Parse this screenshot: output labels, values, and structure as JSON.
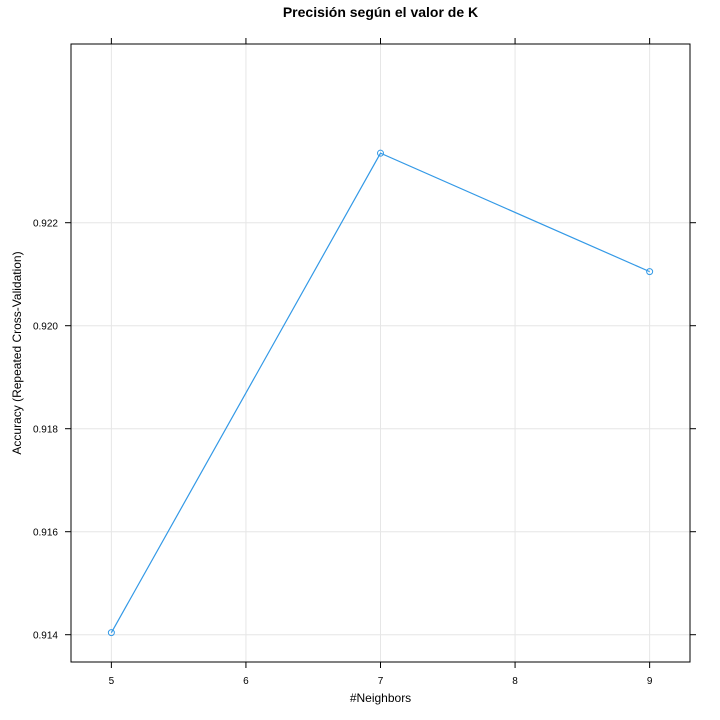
{
  "chart_data": {
    "type": "line",
    "title": "Precisión según el valor de K",
    "xlabel": "#Neighbors",
    "ylabel": "Accuracy (Repeated Cross-Validation)",
    "x": [
      5,
      7,
      9
    ],
    "series": [
      {
        "values": [
          0.91404,
          0.92335,
          0.92105
        ]
      }
    ],
    "xticks": [
      5,
      6,
      7,
      8,
      9
    ],
    "yticks": [
      0.914,
      0.916,
      0.918,
      0.92,
      0.922
    ],
    "xtick_labels": [
      "5",
      "6",
      "7",
      "8",
      "9"
    ],
    "ytick_labels": [
      "0.914",
      "0.916",
      "0.918",
      "0.920",
      "0.922"
    ],
    "xlim": [
      4.7,
      9.3
    ],
    "ylim": [
      0.91347,
      0.92547
    ],
    "grid": true,
    "legend": "none",
    "color": "#3399e6"
  }
}
